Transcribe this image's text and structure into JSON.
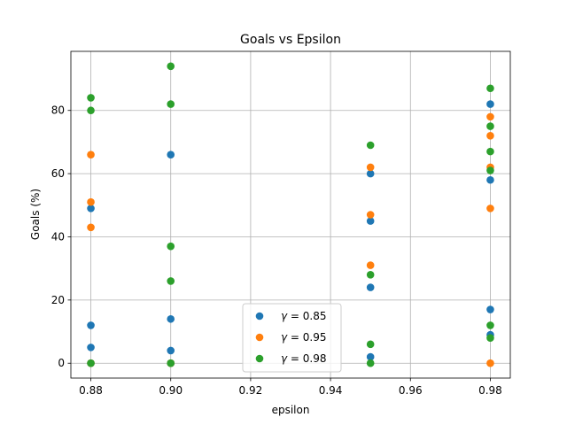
{
  "chart_data": {
    "type": "scatter",
    "title": "Goals vs Epsilon",
    "xlabel": "epsilon",
    "ylabel": "Goals (%)",
    "xlim": [
      0.875,
      0.985
    ],
    "ylim": [
      -4.7,
      98.7
    ],
    "xticks": [
      0.88,
      0.9,
      0.92,
      0.94,
      0.96,
      0.98
    ],
    "xtick_labels": [
      "0.88",
      "0.90",
      "0.92",
      "0.94",
      "0.96",
      "0.98"
    ],
    "yticks": [
      0,
      20,
      40,
      60,
      80
    ],
    "ytick_labels": [
      "0",
      "20",
      "40",
      "60",
      "80"
    ],
    "grid": true,
    "legend_position": "lower center",
    "series": [
      {
        "name_symbol": "γ",
        "name_value": " = 0.85",
        "color": "#1f77b4",
        "points": [
          [
            0.88,
            49
          ],
          [
            0.88,
            12
          ],
          [
            0.88,
            5
          ],
          [
            0.88,
            0
          ],
          [
            0.9,
            66
          ],
          [
            0.9,
            14
          ],
          [
            0.9,
            4
          ],
          [
            0.9,
            0
          ],
          [
            0.95,
            60
          ],
          [
            0.95,
            45
          ],
          [
            0.95,
            24
          ],
          [
            0.95,
            2
          ],
          [
            0.98,
            82
          ],
          [
            0.98,
            58
          ],
          [
            0.98,
            17
          ],
          [
            0.98,
            9
          ]
        ]
      },
      {
        "name_symbol": "γ",
        "name_value": " = 0.95",
        "color": "#ff7f0e",
        "points": [
          [
            0.88,
            66
          ],
          [
            0.88,
            51
          ],
          [
            0.88,
            43
          ],
          [
            0.88,
            0
          ],
          [
            0.9,
            0
          ],
          [
            0.95,
            62
          ],
          [
            0.95,
            47
          ],
          [
            0.95,
            31
          ],
          [
            0.98,
            78
          ],
          [
            0.98,
            72
          ],
          [
            0.98,
            62
          ],
          [
            0.98,
            49
          ],
          [
            0.98,
            0
          ]
        ]
      },
      {
        "name_symbol": "γ",
        "name_value": " = 0.98",
        "color": "#2ca02c",
        "points": [
          [
            0.88,
            84
          ],
          [
            0.88,
            80
          ],
          [
            0.88,
            0
          ],
          [
            0.9,
            94
          ],
          [
            0.9,
            82
          ],
          [
            0.9,
            37
          ],
          [
            0.9,
            26
          ],
          [
            0.9,
            0
          ],
          [
            0.95,
            69
          ],
          [
            0.95,
            28
          ],
          [
            0.95,
            6
          ],
          [
            0.95,
            0
          ],
          [
            0.98,
            87
          ],
          [
            0.98,
            75
          ],
          [
            0.98,
            67
          ],
          [
            0.98,
            61
          ],
          [
            0.98,
            12
          ],
          [
            0.98,
            8
          ]
        ]
      }
    ]
  }
}
